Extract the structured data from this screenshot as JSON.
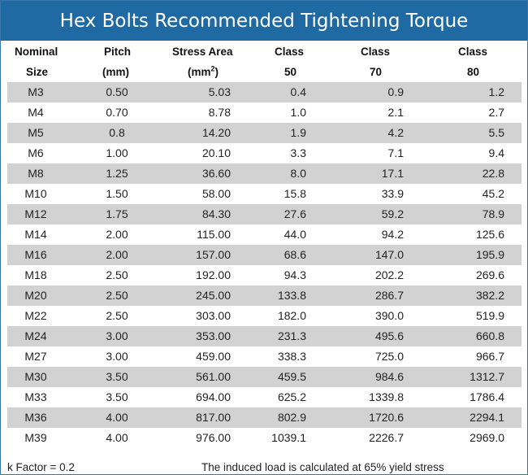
{
  "title": "Hex Bolts Recommended Tightening Torque",
  "headers": {
    "nominal_1": "Nominal",
    "nominal_2": "Size",
    "pitch_1": "Pitch",
    "pitch_2": "(mm)",
    "area_1": "Stress Area",
    "area_2": "(mm",
    "area_sup": "2",
    "area_close": ")",
    "class50_1": "Class",
    "class50_2": "50",
    "class70_1": "Class",
    "class70_2": "70",
    "class80_1": "Class",
    "class80_2": "80"
  },
  "rows": [
    {
      "size": "M3",
      "pitch": "0.50",
      "area": "5.03",
      "c50": "0.4",
      "c70": "0.9",
      "c80": "1.2"
    },
    {
      "size": "M4",
      "pitch": "0.70",
      "area": "8.78",
      "c50": "1.0",
      "c70": "2.1",
      "c80": "2.7"
    },
    {
      "size": "M5",
      "pitch": "0.8",
      "area": "14.20",
      "c50": "1.9",
      "c70": "4.2",
      "c80": "5.5"
    },
    {
      "size": "M6",
      "pitch": "1.00",
      "area": "20.10",
      "c50": "3.3",
      "c70": "7.1",
      "c80": "9.4"
    },
    {
      "size": "M8",
      "pitch": "1.25",
      "area": "36.60",
      "c50": "8.0",
      "c70": "17.1",
      "c80": "22.8"
    },
    {
      "size": "M10",
      "pitch": "1.50",
      "area": "58.00",
      "c50": "15.8",
      "c70": "33.9",
      "c80": "45.2"
    },
    {
      "size": "M12",
      "pitch": "1.75",
      "area": "84.30",
      "c50": "27.6",
      "c70": "59.2",
      "c80": "78.9"
    },
    {
      "size": "M14",
      "pitch": "2.00",
      "area": "115.00",
      "c50": "44.0",
      "c70": "94.2",
      "c80": "125.6"
    },
    {
      "size": "M16",
      "pitch": "2.00",
      "area": "157.00",
      "c50": "68.6",
      "c70": "147.0",
      "c80": "195.9"
    },
    {
      "size": "M18",
      "pitch": "2.50",
      "area": "192.00",
      "c50": "94.3",
      "c70": "202.2",
      "c80": "269.6"
    },
    {
      "size": "M20",
      "pitch": "2.50",
      "area": "245.00",
      "c50": "133.8",
      "c70": "286.7",
      "c80": "382.2"
    },
    {
      "size": "M22",
      "pitch": "2.50",
      "area": "303.00",
      "c50": "182.0",
      "c70": "390.0",
      "c80": "519.9"
    },
    {
      "size": "M24",
      "pitch": "3.00",
      "area": "353.00",
      "c50": "231.3",
      "c70": "495.6",
      "c80": "660.8"
    },
    {
      "size": "M27",
      "pitch": "3.00",
      "area": "459.00",
      "c50": "338.3",
      "c70": "725.0",
      "c80": "966.7"
    },
    {
      "size": "M30",
      "pitch": "3.50",
      "area": "561.00",
      "c50": "459.5",
      "c70": "984.6",
      "c80": "1312.7"
    },
    {
      "size": "M33",
      "pitch": "3.50",
      "area": "694.00",
      "c50": "625.2",
      "c70": "1339.8",
      "c80": "1786.4"
    },
    {
      "size": "M36",
      "pitch": "4.00",
      "area": "817.00",
      "c50": "802.9",
      "c70": "1720.6",
      "c80": "2294.1"
    },
    {
      "size": "M39",
      "pitch": "4.00",
      "area": "976.00",
      "c50": "1039.1",
      "c70": "2226.7",
      "c80": "2969.0"
    }
  ],
  "footer": {
    "k_factor": "k Factor = 0.2",
    "note": "The induced load is calculated at 65% yield stress"
  },
  "colors": {
    "title_bar": "#1f6aa3",
    "row_shade": "#d2d2d2"
  }
}
